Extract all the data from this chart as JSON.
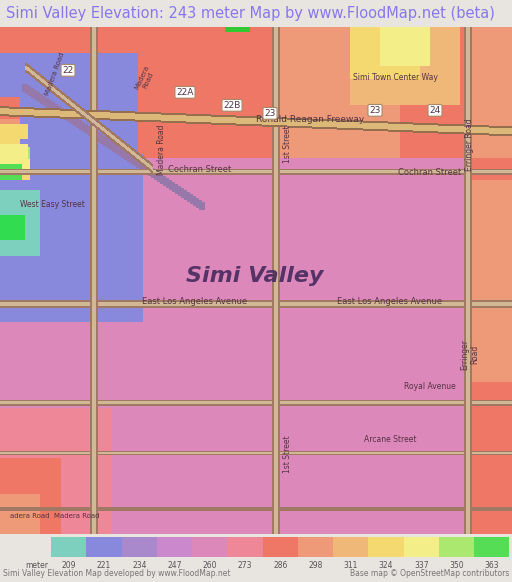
{
  "title": "Simi Valley Elevation: 243 meter Map by www.FloodMap.net (beta)",
  "title_color": "#8877ee",
  "title_bg": "#e8e4e0",
  "title_fontsize": 10.5,
  "bg_color": "#e8e4e0",
  "figsize": [
    5.12,
    5.82
  ],
  "dpi": 100,
  "colorbar": {
    "values": [
      209,
      221,
      234,
      247,
      260,
      273,
      286,
      298,
      311,
      324,
      337,
      350,
      363
    ],
    "colors": [
      "#7dcfbe",
      "#8888dd",
      "#aa88cc",
      "#cc88cc",
      "#dd88bb",
      "#ee8899",
      "#ee7766",
      "#ee9977",
      "#f0b878",
      "#f4d870",
      "#f4ee88",
      "#aae870",
      "#55dd55"
    ],
    "label_bottom1": "Simi Valley Elevation Map developed by www.FloodMap.net",
    "label_bottom2": "Base map © OpenStreetMap contributors",
    "unit": "meter"
  },
  "city_label": "Simi Valley",
  "city_label_color": "#553366",
  "city_label_fontsize": 16,
  "road_label_color": "#553344",
  "map_road_color": "#aa8866",
  "map_road_light": "#ddccaa"
}
